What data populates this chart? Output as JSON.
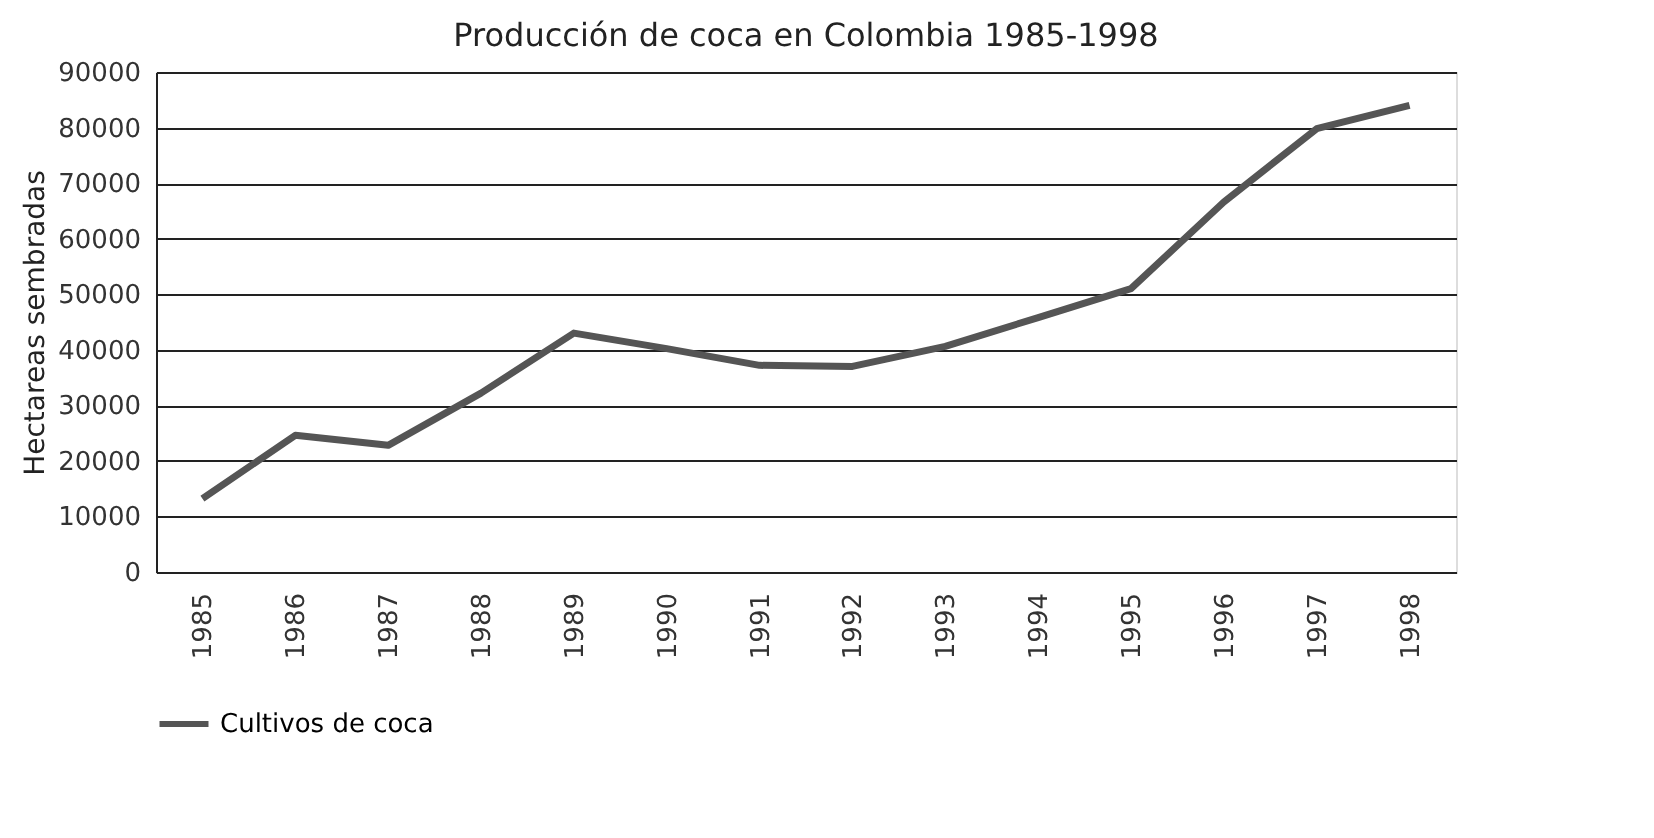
{
  "chart_data": {
    "type": "line",
    "title": "Producción de coca en Colombia 1985-1998",
    "ylabel": "Hectareas sembradas",
    "categories": [
      "1985",
      "1986",
      "1987",
      "1988",
      "1989",
      "1990",
      "1991",
      "1992",
      "1993",
      "1994",
      "1995",
      "1996",
      "1997",
      "1998"
    ],
    "series": [
      {
        "name": "Cultivos de coca",
        "color": "#555555",
        "values": [
          13200,
          24600,
          22800,
          32200,
          43000,
          40200,
          37200,
          37000,
          40600,
          45800,
          51000,
          66600,
          79800,
          84000
        ]
      }
    ],
    "ylim": [
      0,
      90000
    ],
    "yticks": [
      0,
      10000,
      20000,
      30000,
      40000,
      50000,
      60000,
      70000,
      80000,
      90000
    ],
    "grid": "y",
    "legend": "bottom",
    "marker": "none",
    "line_style": "solid"
  }
}
